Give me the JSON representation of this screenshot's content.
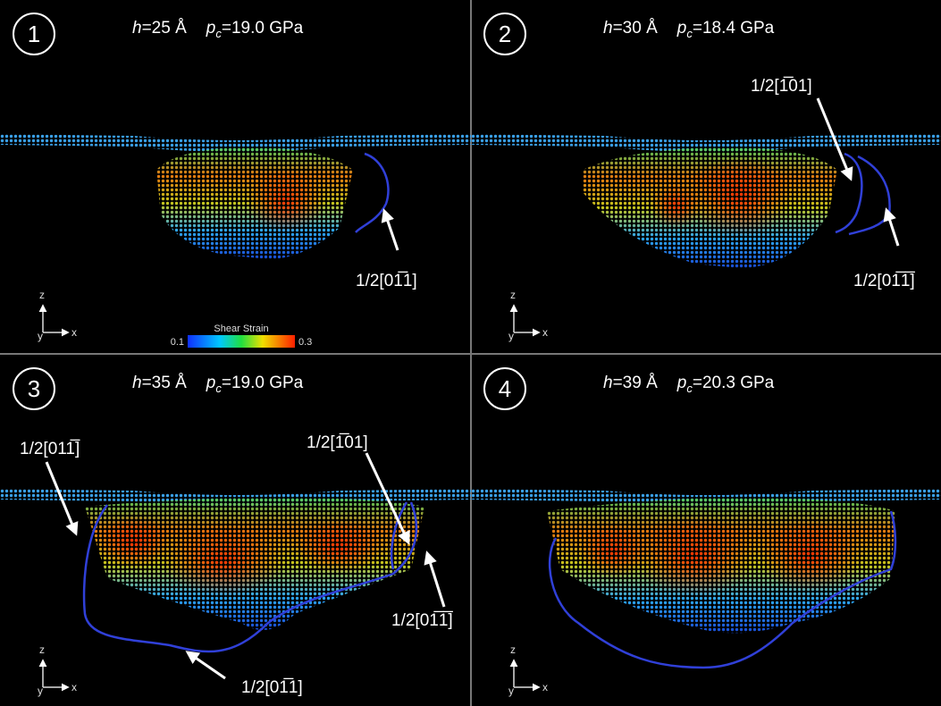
{
  "panels": [
    {
      "number": "1",
      "h_symbol": "h",
      "h_value": "=25 Å",
      "p_symbol": "p",
      "p_subscript": "c",
      "p_value": "=19.0 GPa",
      "labels": [
        "1/2[01̅1]"
      ],
      "axes": {
        "z": "z",
        "x": "x",
        "y": "y"
      }
    },
    {
      "number": "2",
      "h_symbol": "h",
      "h_value": "=30 Å",
      "p_symbol": "p",
      "p_subscript": "c",
      "p_value": "=18.4 GPa",
      "labels": [
        "1/2[1̅01]",
        "1/2[01̅1̅]"
      ],
      "axes": {
        "z": "z",
        "x": "x",
        "y": "y"
      }
    },
    {
      "number": "3",
      "h_symbol": "h",
      "h_value": "=35 Å",
      "p_symbol": "p",
      "p_subscript": "c",
      "p_value": "=19.0 GPa",
      "labels": [
        "1/2[011̅]",
        "1/2[1̅01]",
        "1/2[01̅1̅]",
        "1/2[01̅1]"
      ],
      "axes": {
        "z": "z",
        "x": "x",
        "y": "y"
      }
    },
    {
      "number": "4",
      "h_symbol": "h",
      "h_value": "=39 Å",
      "p_symbol": "p",
      "p_subscript": "c",
      "p_value": "=20.3 GPa",
      "labels": [],
      "axes": {
        "z": "z",
        "x": "x",
        "y": "y"
      }
    }
  ],
  "colorbar": {
    "title": "Shear Strain",
    "min": 0.1,
    "max": 0.3
  }
}
